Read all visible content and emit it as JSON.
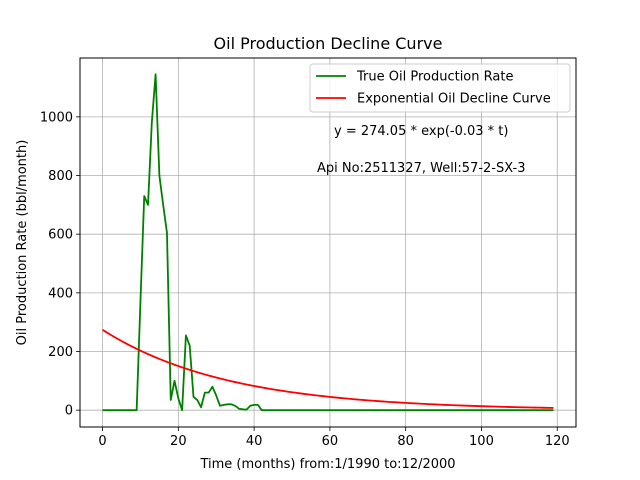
{
  "chart_data": {
    "type": "line",
    "title": "Oil Production Decline Curve",
    "xlabel": "Time (months) from:1/1990 to:12/2000",
    "ylabel": "Oil Production Rate (bbl/month)",
    "xlim": [
      -5.95,
      124.95
    ],
    "ylim": [
      -57.3,
      1200.6
    ],
    "xticks": [
      0,
      20,
      40,
      60,
      80,
      100,
      120
    ],
    "yticks": [
      0,
      200,
      400,
      600,
      800,
      1000
    ],
    "grid": true,
    "legend_position": "top-right",
    "annotations": [
      "y = 274.05 * exp(-0.03 * t)",
      "Api No:2511327, Well:57-2-SX-3"
    ],
    "series": [
      {
        "name": "True Oil Production Rate",
        "color": "#008000",
        "x": [
          0,
          1,
          2,
          3,
          4,
          5,
          6,
          7,
          8,
          9,
          10,
          11,
          12,
          13,
          14,
          15,
          16,
          17,
          18,
          19,
          20,
          21,
          22,
          23,
          24,
          25,
          26,
          27,
          28,
          29,
          30,
          31,
          32,
          33,
          34,
          35,
          36,
          37,
          38,
          39,
          40,
          41,
          42,
          43,
          44,
          45,
          46,
          47,
          48,
          49,
          50,
          51,
          52,
          53,
          54,
          55,
          56,
          57,
          58,
          59,
          60,
          61,
          62,
          63,
          64,
          65,
          66,
          67,
          68,
          69,
          70,
          71,
          72,
          73,
          74,
          75,
          76,
          77,
          78,
          79,
          80,
          81,
          82,
          83,
          84,
          85,
          86,
          87,
          88,
          89,
          90,
          91,
          92,
          93,
          94,
          95,
          96,
          97,
          98,
          99,
          100,
          101,
          102,
          103,
          104,
          105,
          106,
          107,
          108,
          109,
          110,
          111,
          112,
          113,
          114,
          115,
          116,
          117,
          118,
          119
        ],
        "y": [
          0,
          0,
          0,
          0,
          0,
          0,
          0,
          0,
          0,
          0,
          370,
          730,
          700,
          980,
          1145,
          800,
          700,
          605,
          35,
          100,
          40,
          0,
          255,
          220,
          45,
          35,
          10,
          60,
          60,
          80,
          50,
          15,
          18,
          20,
          20,
          15,
          5,
          3,
          2,
          15,
          18,
          18,
          0,
          0,
          0,
          0,
          0,
          0,
          0,
          0,
          0,
          0,
          0,
          0,
          0,
          0,
          0,
          0,
          0,
          0,
          0,
          0,
          0,
          0,
          0,
          0,
          0,
          0,
          0,
          0,
          0,
          0,
          0,
          0,
          0,
          0,
          0,
          0,
          0,
          0,
          0,
          0,
          0,
          0,
          0,
          0,
          0,
          0,
          0,
          0,
          0,
          0,
          0,
          0,
          0,
          0,
          0,
          0,
          0,
          0,
          0,
          0,
          0,
          0,
          0,
          0,
          0,
          0,
          0,
          0,
          0,
          0,
          0,
          0,
          0,
          0,
          0,
          0,
          0,
          0
        ]
      },
      {
        "name": "Exponential Oil Decline Curve",
        "color": "#ff0000",
        "model": {
          "a": 274.05,
          "b": 0.03
        },
        "x_range": [
          0,
          119
        ]
      }
    ]
  }
}
